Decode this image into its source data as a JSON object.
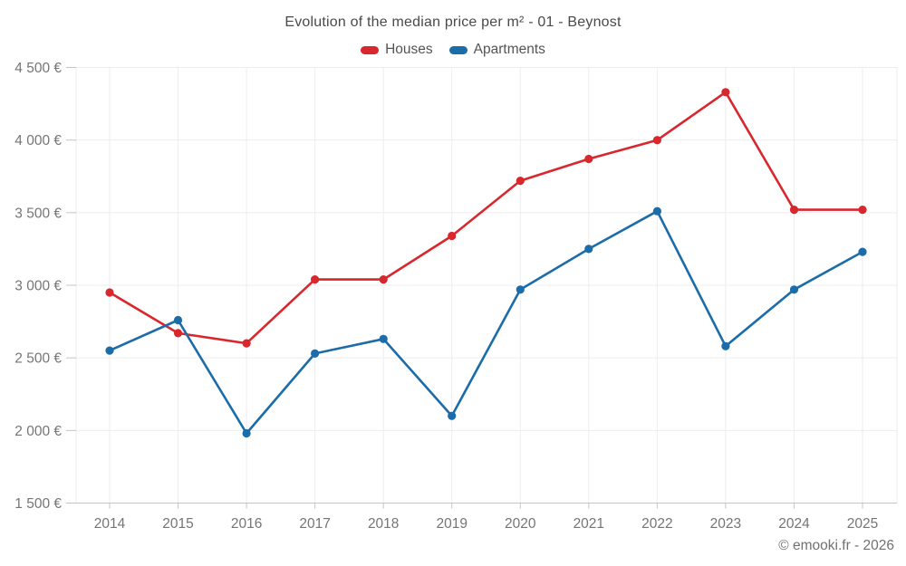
{
  "header": {
    "title": "Evolution of the median price per m² - 01 - Beynost"
  },
  "footer": {
    "credit": "© emooki.fr - 2026"
  },
  "colors": {
    "houses": "#d9272e",
    "apartments": "#1b6ca8",
    "grid": "#ededed",
    "axis": "#c4c4c4",
    "tick_label": "#757575"
  },
  "chart_data": {
    "type": "line",
    "title": "Evolution of the median price per m² - 01 - Beynost",
    "categories": [
      "2014",
      "2015",
      "2016",
      "2017",
      "2018",
      "2019",
      "2020",
      "2021",
      "2022",
      "2023",
      "2024",
      "2025"
    ],
    "series": [
      {
        "name": "Houses",
        "color": "#d9272e",
        "values": [
          2950,
          2670,
          2600,
          3040,
          3040,
          3340,
          3720,
          3870,
          4000,
          4330,
          3520,
          3520
        ]
      },
      {
        "name": "Apartments",
        "color": "#1b6ca8",
        "values": [
          2550,
          2760,
          1980,
          2530,
          2630,
          2100,
          2970,
          3250,
          3510,
          2580,
          2970,
          3230
        ]
      }
    ],
    "xlabel": "",
    "ylabel": "",
    "ylim": [
      1500,
      4500
    ],
    "ytick_step": 500,
    "ytick_labels": [
      "1 500 €",
      "2 000 €",
      "2 500 €",
      "3 000 €",
      "3 500 €",
      "4 000 €",
      "4 500 €"
    ],
    "grid": true,
    "legend_position": "top",
    "currency": "€"
  }
}
